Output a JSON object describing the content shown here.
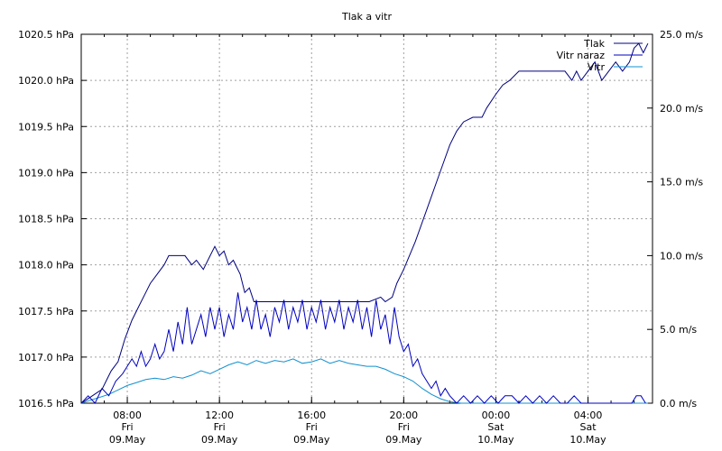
{
  "chart_data": {
    "type": "line",
    "title": "Tlak a vitr",
    "grid": true,
    "legend_placement": "top-right",
    "x_axis": {
      "unit": "hours_since_start",
      "range": [
        6.0,
        30.8
      ],
      "ticks": [
        {
          "x": 8,
          "time": "08:00",
          "day": "Fri",
          "date": "09.May"
        },
        {
          "x": 12,
          "time": "12:00",
          "day": "Fri",
          "date": "09.May"
        },
        {
          "x": 16,
          "time": "16:00",
          "day": "Fri",
          "date": "09.May"
        },
        {
          "x": 20,
          "time": "20:00",
          "day": "Fri",
          "date": "09.May"
        },
        {
          "x": 24,
          "time": "00:00",
          "day": "Sat",
          "date": "10.May"
        },
        {
          "x": 28,
          "time": "04:00",
          "day": "Sat",
          "date": "10.May"
        }
      ]
    },
    "y_left": {
      "unit": "hPa",
      "range": [
        1016.5,
        1020.5
      ],
      "ticks": [
        {
          "v": 1016.5,
          "label": "1016.5 hPa"
        },
        {
          "v": 1017.0,
          "label": "1017.0 hPa"
        },
        {
          "v": 1017.5,
          "label": "1017.5 hPa"
        },
        {
          "v": 1018.0,
          "label": "1018.0 hPa"
        },
        {
          "v": 1018.5,
          "label": "1018.5 hPa"
        },
        {
          "v": 1019.0,
          "label": "1019.0 hPa"
        },
        {
          "v": 1019.5,
          "label": "1019.5 hPa"
        },
        {
          "v": 1020.0,
          "label": "1020.0 hPa"
        },
        {
          "v": 1020.5,
          "label": "1020.5 hPa"
        }
      ]
    },
    "y_right": {
      "unit": "m/s",
      "range": [
        0,
        25
      ],
      "ticks": [
        {
          "v": 0,
          "label": "0.0 m/s"
        },
        {
          "v": 5,
          "label": "5.0 m/s"
        },
        {
          "v": 10,
          "label": "10.0 m/s"
        },
        {
          "v": 15,
          "label": "15.0 m/s"
        },
        {
          "v": 20,
          "label": "20.0 m/s"
        },
        {
          "v": 25,
          "label": "25.0 m/s"
        }
      ]
    },
    "series": [
      {
        "name": "Tlak",
        "axis": "left",
        "color": "#000080",
        "points": [
          [
            6.0,
            1016.5
          ],
          [
            6.3,
            1016.55
          ],
          [
            6.6,
            1016.6
          ],
          [
            6.9,
            1016.65
          ],
          [
            7.1,
            1016.75
          ],
          [
            7.3,
            1016.85
          ],
          [
            7.6,
            1016.95
          ],
          [
            7.9,
            1017.2
          ],
          [
            8.2,
            1017.4
          ],
          [
            8.5,
            1017.55
          ],
          [
            8.8,
            1017.7
          ],
          [
            9.0,
            1017.8
          ],
          [
            9.3,
            1017.9
          ],
          [
            9.6,
            1018.0
          ],
          [
            9.8,
            1018.1
          ],
          [
            10.0,
            1018.1
          ],
          [
            10.5,
            1018.1
          ],
          [
            10.8,
            1018.0
          ],
          [
            11.0,
            1018.05
          ],
          [
            11.3,
            1017.95
          ],
          [
            11.6,
            1018.1
          ],
          [
            11.8,
            1018.2
          ],
          [
            12.0,
            1018.1
          ],
          [
            12.2,
            1018.15
          ],
          [
            12.4,
            1018.0
          ],
          [
            12.6,
            1018.05
          ],
          [
            12.9,
            1017.9
          ],
          [
            13.1,
            1017.7
          ],
          [
            13.3,
            1017.75
          ],
          [
            13.5,
            1017.6
          ],
          [
            14.0,
            1017.6
          ],
          [
            14.5,
            1017.6
          ],
          [
            15.0,
            1017.6
          ],
          [
            15.5,
            1017.6
          ],
          [
            16.0,
            1017.6
          ],
          [
            16.5,
            1017.6
          ],
          [
            17.0,
            1017.6
          ],
          [
            17.5,
            1017.6
          ],
          [
            18.0,
            1017.6
          ],
          [
            18.5,
            1017.6
          ],
          [
            19.0,
            1017.65
          ],
          [
            19.2,
            1017.6
          ],
          [
            19.5,
            1017.65
          ],
          [
            19.7,
            1017.8
          ],
          [
            20.0,
            1017.95
          ],
          [
            20.5,
            1018.25
          ],
          [
            21.0,
            1018.6
          ],
          [
            21.5,
            1018.95
          ],
          [
            22.0,
            1019.3
          ],
          [
            22.3,
            1019.45
          ],
          [
            22.6,
            1019.55
          ],
          [
            23.0,
            1019.6
          ],
          [
            23.4,
            1019.6
          ],
          [
            23.6,
            1019.7
          ],
          [
            24.0,
            1019.85
          ],
          [
            24.3,
            1019.95
          ],
          [
            24.6,
            1020.0
          ],
          [
            25.0,
            1020.1
          ],
          [
            25.5,
            1020.1
          ],
          [
            26.0,
            1020.1
          ],
          [
            26.5,
            1020.1
          ],
          [
            27.0,
            1020.1
          ],
          [
            27.3,
            1020.0
          ],
          [
            27.5,
            1020.1
          ],
          [
            27.7,
            1020.0
          ],
          [
            28.0,
            1020.1
          ],
          [
            28.3,
            1020.2
          ],
          [
            28.6,
            1020.0
          ],
          [
            28.9,
            1020.1
          ],
          [
            29.2,
            1020.2
          ],
          [
            29.5,
            1020.1
          ],
          [
            29.8,
            1020.2
          ],
          [
            30.0,
            1020.35
          ],
          [
            30.2,
            1020.4
          ],
          [
            30.4,
            1020.3
          ],
          [
            30.6,
            1020.4
          ]
        ]
      },
      {
        "name": "Vitr naraz",
        "axis": "right",
        "color": "#0000c0",
        "points": [
          [
            6.0,
            0.0
          ],
          [
            6.3,
            0.5
          ],
          [
            6.6,
            0.0
          ],
          [
            6.9,
            1.0
          ],
          [
            7.2,
            0.5
          ],
          [
            7.5,
            1.5
          ],
          [
            7.8,
            2.0
          ],
          [
            8.0,
            2.5
          ],
          [
            8.2,
            3.0
          ],
          [
            8.4,
            2.5
          ],
          [
            8.6,
            3.5
          ],
          [
            8.8,
            2.5
          ],
          [
            9.0,
            3.0
          ],
          [
            9.2,
            4.0
          ],
          [
            9.4,
            3.0
          ],
          [
            9.6,
            3.5
          ],
          [
            9.8,
            5.0
          ],
          [
            10.0,
            3.5
          ],
          [
            10.2,
            5.5
          ],
          [
            10.4,
            4.0
          ],
          [
            10.6,
            6.5
          ],
          [
            10.8,
            4.0
          ],
          [
            11.0,
            5.0
          ],
          [
            11.2,
            6.0
          ],
          [
            11.4,
            4.5
          ],
          [
            11.6,
            6.5
          ],
          [
            11.8,
            5.0
          ],
          [
            12.0,
            6.5
          ],
          [
            12.2,
            4.5
          ],
          [
            12.4,
            6.0
          ],
          [
            12.6,
            5.0
          ],
          [
            12.8,
            7.5
          ],
          [
            13.0,
            5.5
          ],
          [
            13.2,
            6.5
          ],
          [
            13.4,
            5.0
          ],
          [
            13.6,
            7.0
          ],
          [
            13.8,
            5.0
          ],
          [
            14.0,
            6.0
          ],
          [
            14.2,
            4.5
          ],
          [
            14.4,
            6.5
          ],
          [
            14.6,
            5.5
          ],
          [
            14.8,
            7.0
          ],
          [
            15.0,
            5.0
          ],
          [
            15.2,
            6.5
          ],
          [
            15.4,
            5.5
          ],
          [
            15.6,
            7.0
          ],
          [
            15.8,
            5.0
          ],
          [
            16.0,
            6.5
          ],
          [
            16.2,
            5.5
          ],
          [
            16.4,
            7.0
          ],
          [
            16.6,
            5.0
          ],
          [
            16.8,
            6.5
          ],
          [
            17.0,
            5.5
          ],
          [
            17.2,
            7.0
          ],
          [
            17.4,
            5.0
          ],
          [
            17.6,
            6.5
          ],
          [
            17.8,
            5.5
          ],
          [
            18.0,
            7.0
          ],
          [
            18.2,
            5.0
          ],
          [
            18.4,
            6.5
          ],
          [
            18.6,
            4.5
          ],
          [
            18.8,
            7.0
          ],
          [
            19.0,
            5.0
          ],
          [
            19.2,
            6.0
          ],
          [
            19.4,
            4.0
          ],
          [
            19.6,
            6.5
          ],
          [
            19.8,
            4.5
          ],
          [
            20.0,
            3.5
          ],
          [
            20.2,
            4.0
          ],
          [
            20.4,
            2.5
          ],
          [
            20.6,
            3.0
          ],
          [
            20.8,
            2.0
          ],
          [
            21.0,
            1.5
          ],
          [
            21.2,
            1.0
          ],
          [
            21.4,
            1.5
          ],
          [
            21.6,
            0.5
          ],
          [
            21.8,
            1.0
          ],
          [
            22.0,
            0.5
          ],
          [
            22.3,
            0.0
          ],
          [
            22.6,
            0.5
          ],
          [
            22.9,
            0.0
          ],
          [
            23.2,
            0.5
          ],
          [
            23.5,
            0.0
          ],
          [
            23.8,
            0.5
          ],
          [
            24.1,
            0.0
          ],
          [
            24.4,
            0.5
          ],
          [
            24.7,
            0.5
          ],
          [
            25.0,
            0.0
          ],
          [
            25.3,
            0.5
          ],
          [
            25.6,
            0.0
          ],
          [
            25.9,
            0.5
          ],
          [
            26.2,
            0.0
          ],
          [
            26.5,
            0.5
          ],
          [
            26.8,
            0.0
          ],
          [
            27.1,
            0.0
          ],
          [
            27.4,
            0.5
          ],
          [
            27.7,
            0.0
          ],
          [
            28.0,
            0.0
          ],
          [
            28.4,
            0.0
          ],
          [
            28.8,
            0.0
          ],
          [
            29.2,
            0.0
          ],
          [
            29.6,
            0.0
          ],
          [
            29.9,
            0.0
          ],
          [
            30.1,
            0.5
          ],
          [
            30.3,
            0.5
          ],
          [
            30.5,
            0.0
          ]
        ]
      },
      {
        "name": "Vitr",
        "axis": "right",
        "color": "#1090d0",
        "points": [
          [
            6.0,
            0.0
          ],
          [
            6.4,
            0.2
          ],
          [
            6.8,
            0.4
          ],
          [
            7.2,
            0.6
          ],
          [
            7.6,
            0.9
          ],
          [
            8.0,
            1.2
          ],
          [
            8.4,
            1.4
          ],
          [
            8.8,
            1.6
          ],
          [
            9.2,
            1.7
          ],
          [
            9.6,
            1.6
          ],
          [
            10.0,
            1.8
          ],
          [
            10.4,
            1.7
          ],
          [
            10.8,
            1.9
          ],
          [
            11.2,
            2.2
          ],
          [
            11.6,
            2.0
          ],
          [
            12.0,
            2.3
          ],
          [
            12.4,
            2.6
          ],
          [
            12.8,
            2.8
          ],
          [
            13.2,
            2.6
          ],
          [
            13.6,
            2.9
          ],
          [
            14.0,
            2.7
          ],
          [
            14.4,
            2.9
          ],
          [
            14.8,
            2.8
          ],
          [
            15.2,
            3.0
          ],
          [
            15.6,
            2.7
          ],
          [
            16.0,
            2.8
          ],
          [
            16.4,
            3.0
          ],
          [
            16.8,
            2.7
          ],
          [
            17.2,
            2.9
          ],
          [
            17.6,
            2.7
          ],
          [
            18.0,
            2.6
          ],
          [
            18.4,
            2.5
          ],
          [
            18.8,
            2.5
          ],
          [
            19.2,
            2.3
          ],
          [
            19.6,
            2.0
          ],
          [
            20.0,
            1.8
          ],
          [
            20.4,
            1.5
          ],
          [
            20.8,
            1.0
          ],
          [
            21.2,
            0.6
          ],
          [
            21.6,
            0.3
          ],
          [
            22.0,
            0.1
          ],
          [
            22.5,
            0.0
          ],
          [
            23.0,
            0.0
          ],
          [
            24.0,
            0.0
          ],
          [
            25.0,
            0.0
          ],
          [
            26.0,
            0.0
          ],
          [
            27.0,
            0.0
          ],
          [
            28.0,
            0.0
          ],
          [
            29.0,
            0.0
          ],
          [
            30.0,
            0.0
          ],
          [
            30.6,
            0.0
          ]
        ]
      }
    ]
  }
}
